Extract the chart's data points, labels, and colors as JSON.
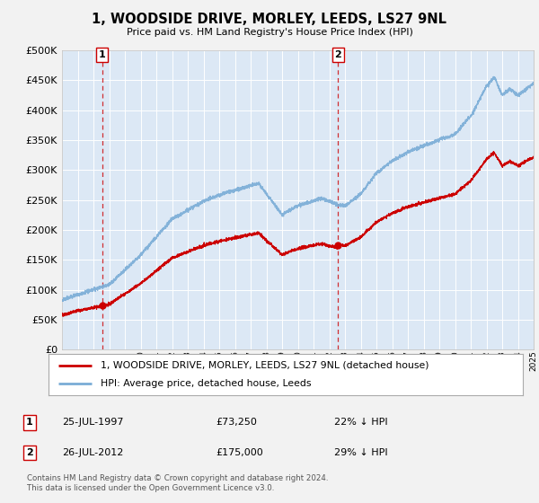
{
  "title": "1, WOODSIDE DRIVE, MORLEY, LEEDS, LS27 9NL",
  "subtitle": "Price paid vs. HM Land Registry's House Price Index (HPI)",
  "legend_line1": "1, WOODSIDE DRIVE, MORLEY, LEEDS, LS27 9NL (detached house)",
  "legend_line2": "HPI: Average price, detached house, Leeds",
  "annotation1_date": "25-JUL-1997",
  "annotation1_price": "£73,250",
  "annotation1_hpi": "22% ↓ HPI",
  "annotation2_date": "26-JUL-2012",
  "annotation2_price": "£175,000",
  "annotation2_hpi": "29% ↓ HPI",
  "footer": "Contains HM Land Registry data © Crown copyright and database right 2024.\nThis data is licensed under the Open Government Licence v3.0.",
  "red_line_color": "#cc0000",
  "blue_line_color": "#7aacd6",
  "fig_bg_color": "#f0f0f0",
  "plot_bg_color": "#dce8f5",
  "grid_color": "#c8d8e8",
  "dashed_line_color": "#cc0000",
  "ylim": [
    0,
    500000
  ],
  "yticks": [
    0,
    50000,
    100000,
    150000,
    200000,
    250000,
    300000,
    350000,
    400000,
    450000,
    500000
  ],
  "sale1_year": 1997.56,
  "sale1_price": 73250,
  "sale2_year": 2012.56,
  "sale2_price": 175000,
  "start_year": 1995,
  "end_year": 2025
}
